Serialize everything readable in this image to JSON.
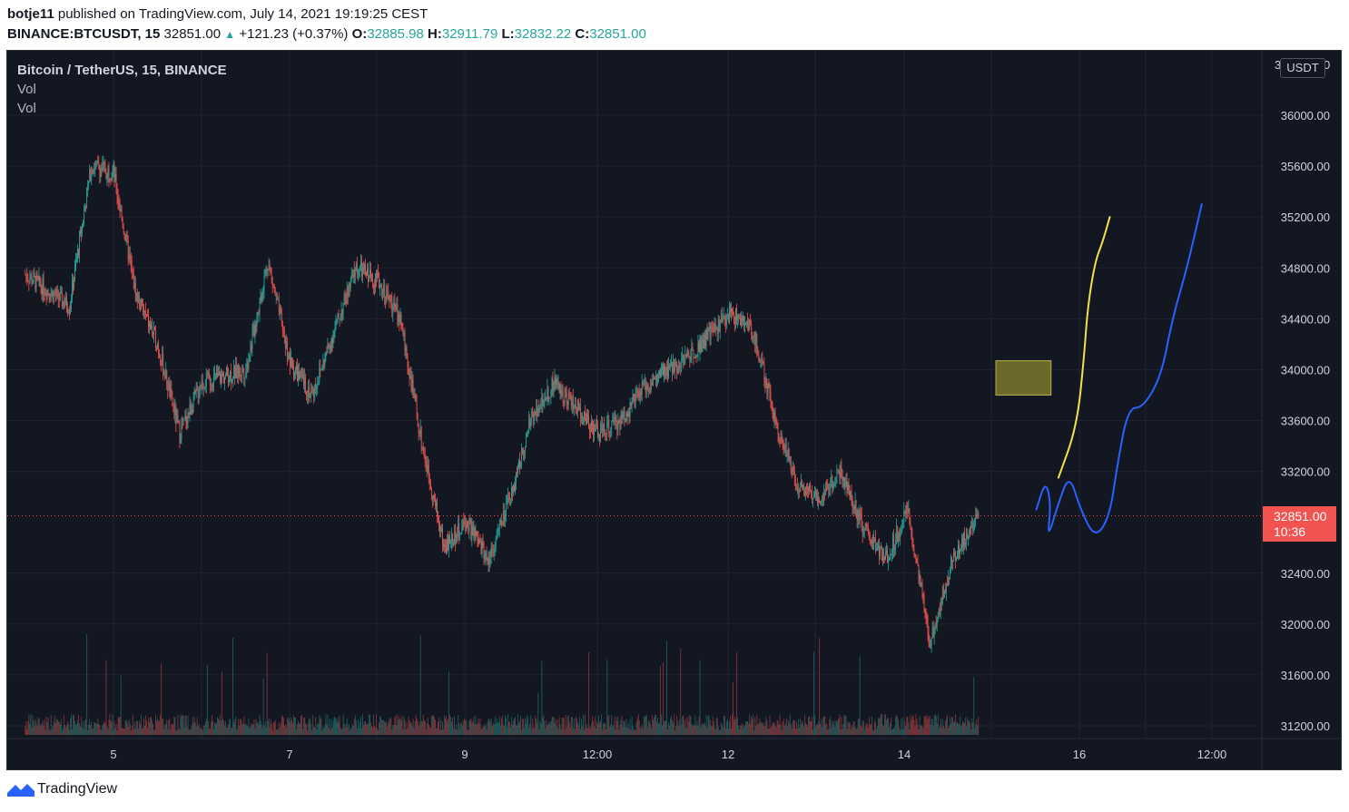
{
  "header": {
    "author": "botje11",
    "published_text": "published on TradingView.com, July 14, 2021 19:19:25 CEST",
    "symbol": "BINANCE:BTCUSDT, 15",
    "last": "32851.00",
    "change_arrow": "▲",
    "change": "+121.23 (+0.37%)",
    "o_label": "O:",
    "o": "32885.98",
    "h_label": "H:",
    "h": "32911.79",
    "l_label": "L:",
    "l": "32832.22",
    "c_label": "C:",
    "c": "32851.00"
  },
  "legend": {
    "title": "Bitcoin / TetherUS, 15, BINANCE",
    "vol1": "Vol",
    "vol2": "Vol"
  },
  "price_axis": {
    "unit": "USDT",
    "top_partial": "3",
    "top_partial_right": "0",
    "last_price_label": "32851.00",
    "countdown": "10:36"
  },
  "brand": {
    "name": "TradingView"
  },
  "colors": {
    "background": "#131722",
    "up": "#26a69a",
    "down": "#ef5350",
    "grid": "#1f2331",
    "axis_text": "#d1d4dc",
    "yellow_line": "#f2e24a",
    "blue_line": "#2962ff",
    "zone": "#6b6a2a"
  },
  "chart_data": {
    "type": "candlestick",
    "symbol": "BTCUSDT",
    "interval_minutes": 15,
    "ylim": [
      31100,
      36550
    ],
    "yticks": [
      "36000.00",
      "35600.00",
      "35200.00",
      "34800.00",
      "34400.00",
      "34000.00",
      "33600.00",
      "33200.00",
      "32400.00",
      "32000.00",
      "31600.00",
      "31200.00"
    ],
    "xticks": [
      "5",
      "7",
      "9",
      "12:00",
      "12",
      "14",
      "16",
      "12:00"
    ],
    "last_price": 32851.0,
    "close_path": [
      {
        "x": "Jul 4 00:00",
        "y": 34750
      },
      {
        "x": "Jul 4 12:00",
        "y": 34500
      },
      {
        "x": "Jul 4 18:00",
        "y": 35600
      },
      {
        "x": "Jul 5 00:00",
        "y": 35550
      },
      {
        "x": "Jul 5 06:00",
        "y": 34600
      },
      {
        "x": "Jul 5 12:00",
        "y": 34200
      },
      {
        "x": "Jul 5 18:00",
        "y": 33500
      },
      {
        "x": "Jul 6 00:00",
        "y": 33900
      },
      {
        "x": "Jul 6 12:00",
        "y": 34000
      },
      {
        "x": "Jul 6 18:00",
        "y": 34850
      },
      {
        "x": "Jul 7 00:00",
        "y": 34050
      },
      {
        "x": "Jul 7 06:00",
        "y": 33800
      },
      {
        "x": "Jul 7 12:00",
        "y": 34300
      },
      {
        "x": "Jul 7 18:00",
        "y": 34800
      },
      {
        "x": "Jul 8 00:00",
        "y": 34700
      },
      {
        "x": "Jul 8 06:00",
        "y": 34400
      },
      {
        "x": "Jul 8 12:00",
        "y": 33400
      },
      {
        "x": "Jul 8 18:00",
        "y": 32600
      },
      {
        "x": "Jul 9 00:00",
        "y": 32800
      },
      {
        "x": "Jul 9 06:00",
        "y": 32500
      },
      {
        "x": "Jul 9 12:00",
        "y": 33000
      },
      {
        "x": "Jul 9 18:00",
        "y": 33650
      },
      {
        "x": "Jul 10 00:00",
        "y": 33900
      },
      {
        "x": "Jul 10 06:00",
        "y": 33700
      },
      {
        "x": "Jul 10 12:00",
        "y": 33500
      },
      {
        "x": "Jul 10 18:00",
        "y": 33600
      },
      {
        "x": "Jul 11 00:00",
        "y": 33850
      },
      {
        "x": "Jul 11 12:00",
        "y": 34100
      },
      {
        "x": "Jul 12 00:00",
        "y": 34450
      },
      {
        "x": "Jul 12 06:00",
        "y": 34300
      },
      {
        "x": "Jul 12 12:00",
        "y": 33600
      },
      {
        "x": "Jul 12 18:00",
        "y": 33100
      },
      {
        "x": "Jul 13 00:00",
        "y": 33000
      },
      {
        "x": "Jul 13 06:00",
        "y": 33200
      },
      {
        "x": "Jul 13 12:00",
        "y": 32750
      },
      {
        "x": "Jul 13 18:00",
        "y": 32500
      },
      {
        "x": "Jul 14 00:00",
        "y": 32900
      },
      {
        "x": "Jul 14 06:00",
        "y": 31850
      },
      {
        "x": "Jul 14 12:00",
        "y": 32500
      },
      {
        "x": "Jul 14 19:15",
        "y": 32851
      }
    ],
    "zone": {
      "x_start": "Jul 15 00:00",
      "x_end": "Jul 15 15:00",
      "y_low": 33800,
      "y_high": 34070
    },
    "drawings": [
      {
        "name": "yellow",
        "color": "#f2e24a",
        "points": [
          {
            "x": "Jul 15 17:00",
            "y": 33150
          },
          {
            "x": "Jul 15 22:00",
            "y": 33550
          },
          {
            "x": "Jul 16 00:00",
            "y": 34100
          },
          {
            "x": "Jul 16 01:00",
            "y": 34500
          },
          {
            "x": "Jul 16 03:00",
            "y": 34850
          },
          {
            "x": "Jul 16 05:00",
            "y": 35000
          },
          {
            "x": "Jul 16 07:00",
            "y": 35200
          }
        ]
      },
      {
        "name": "blue",
        "color": "#2962ff",
        "points": [
          {
            "x": "Jul 15 11:00",
            "y": 32900
          },
          {
            "x": "Jul 15 13:30",
            "y": 33130
          },
          {
            "x": "Jul 15 15:00",
            "y": 32950
          },
          {
            "x": "Jul 15 14:00",
            "y": 32660
          },
          {
            "x": "Jul 15 17:00",
            "y": 32950
          },
          {
            "x": "Jul 15 20:00",
            "y": 33180
          },
          {
            "x": "Jul 15 23:00",
            "y": 32900
          },
          {
            "x": "Jul 16 03:00",
            "y": 32670
          },
          {
            "x": "Jul 16 07:00",
            "y": 32850
          },
          {
            "x": "Jul 16 09:00",
            "y": 33250
          },
          {
            "x": "Jul 16 12:00",
            "y": 33700
          },
          {
            "x": "Jul 16 16:00",
            "y": 33700
          },
          {
            "x": "Jul 16 21:00",
            "y": 33950
          },
          {
            "x": "Jul 17 00:00",
            "y": 34400
          },
          {
            "x": "Jul 17 04:00",
            "y": 34800
          },
          {
            "x": "Jul 17 08:00",
            "y": 35300
          }
        ]
      }
    ]
  }
}
